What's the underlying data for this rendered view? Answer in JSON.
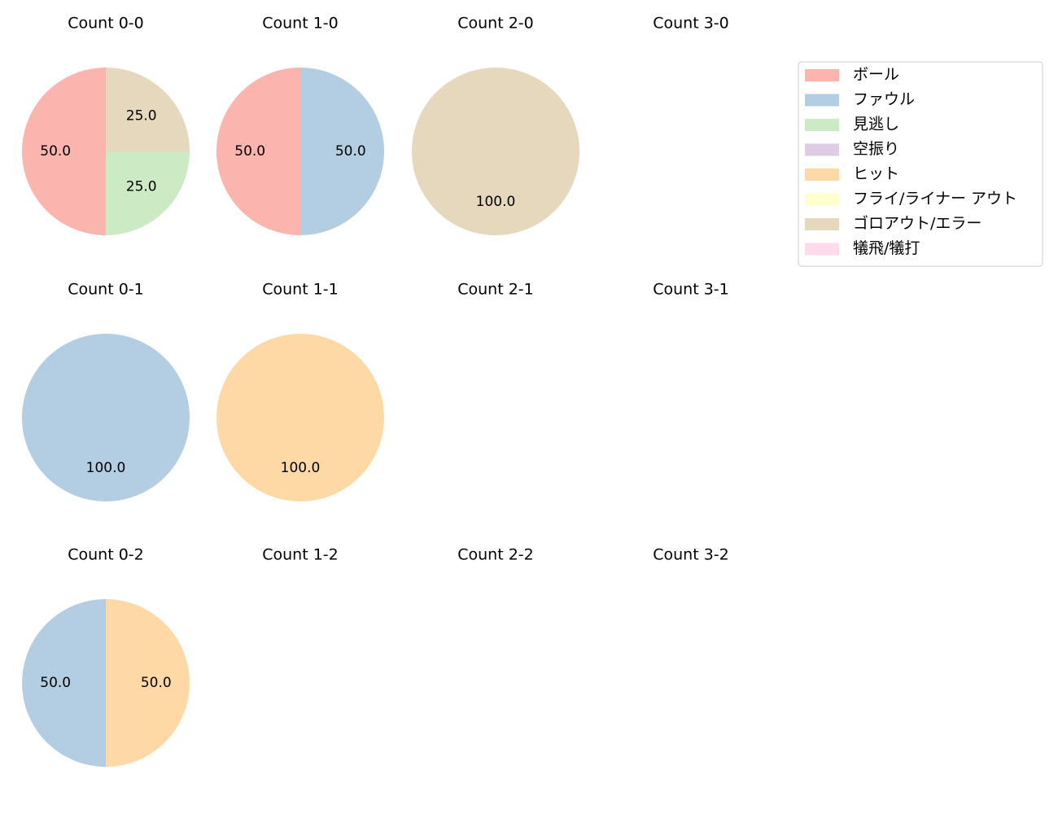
{
  "chart_data": {
    "type": "pie",
    "legend": {
      "placement": "right",
      "entries": [
        {
          "key": "ball",
          "label": "ボール",
          "color": "#fbb4ae"
        },
        {
          "key": "foul",
          "label": "ファウル",
          "color": "#b3cde3"
        },
        {
          "key": "looking",
          "label": "見逃し",
          "color": "#ccebc5"
        },
        {
          "key": "swinging",
          "label": "空振り",
          "color": "#decbe4"
        },
        {
          "key": "hit",
          "label": "ヒット",
          "color": "#fed9a6"
        },
        {
          "key": "fly",
          "label": "フライ/ライナー アウト",
          "color": "#ffffcc"
        },
        {
          "key": "ground",
          "label": "ゴロアウト/エラー",
          "color": "#e5d8bd"
        },
        {
          "key": "sac",
          "label": "犠飛/犠打",
          "color": "#fddaec"
        }
      ]
    },
    "panels": [
      {
        "title": "Count 0-0",
        "slices": [
          {
            "category": "ball",
            "value": 50.0,
            "label": "50.0"
          },
          {
            "category": "looking",
            "value": 25.0,
            "label": "25.0"
          },
          {
            "category": "ground",
            "value": 25.0,
            "label": "25.0"
          }
        ]
      },
      {
        "title": "Count 1-0",
        "slices": [
          {
            "category": "ball",
            "value": 50.0,
            "label": "50.0"
          },
          {
            "category": "foul",
            "value": 50.0,
            "label": "50.0"
          }
        ]
      },
      {
        "title": "Count 2-0",
        "slices": [
          {
            "category": "ground",
            "value": 100.0,
            "label": "100.0"
          }
        ]
      },
      {
        "title": "Count 3-0",
        "slices": []
      },
      {
        "title": "Count 0-1",
        "slices": [
          {
            "category": "foul",
            "value": 100.0,
            "label": "100.0"
          }
        ]
      },
      {
        "title": "Count 1-1",
        "slices": [
          {
            "category": "hit",
            "value": 100.0,
            "label": "100.0"
          }
        ]
      },
      {
        "title": "Count 2-1",
        "slices": []
      },
      {
        "title": "Count 3-1",
        "slices": []
      },
      {
        "title": "Count 0-2",
        "slices": [
          {
            "category": "foul",
            "value": 50.0,
            "label": "50.0"
          },
          {
            "category": "hit",
            "value": 50.0,
            "label": "50.0"
          }
        ]
      },
      {
        "title": "Count 1-2",
        "slices": []
      },
      {
        "title": "Count 2-2",
        "slices": []
      },
      {
        "title": "Count 3-2",
        "slices": []
      }
    ]
  }
}
